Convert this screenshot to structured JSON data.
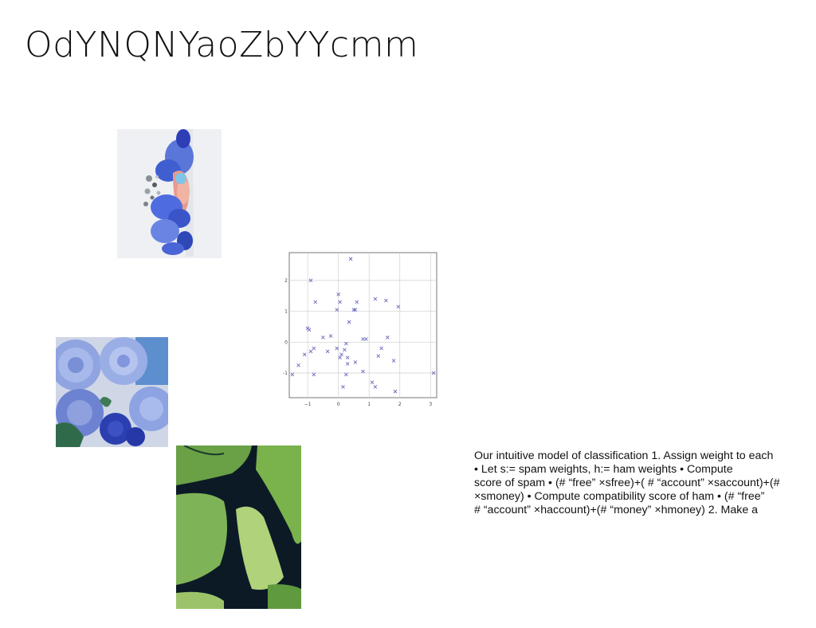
{
  "slide": {
    "title": "OdYNQNYaoZbYYcmm",
    "body_lines": [
      "Our intuitive model of classification 1. Assign weight to each",
      "• Let s:= spam weights, h:= ham weights • Compute",
      "score of spam • (# “free” ×sfree)+( # “account” ×saccount)+(#",
      "×smoney) • Compute compatibility score of ham • (# “free”",
      "# “account” ×haccount)+(# “money” ×hmoney) 2. Make a"
    ]
  },
  "images": {
    "orchid": "blue-orchid-photo",
    "dahlia": "blue-dahlia-photo",
    "wing": "butterfly-wing-photo"
  },
  "chart_data": {
    "type": "scatter",
    "marker": "x",
    "marker_color": "#6b6bbd",
    "grid": true,
    "xlim": [
      -1.6,
      3.2
    ],
    "ylim": [
      -1.8,
      2.9
    ],
    "xticks": [
      "−1",
      "0",
      "1",
      "2",
      "3"
    ],
    "yticks": [
      "2",
      "1",
      "0",
      "−1"
    ],
    "xtick_values": [
      -1,
      0,
      1,
      2,
      3
    ],
    "ytick_values": [
      2,
      1,
      0,
      -1
    ],
    "points": [
      [
        0.4,
        2.7
      ],
      [
        -0.9,
        2.0
      ],
      [
        0.0,
        1.55
      ],
      [
        0.05,
        1.3
      ],
      [
        -0.75,
        1.3
      ],
      [
        0.6,
        1.3
      ],
      [
        1.2,
        1.4
      ],
      [
        1.55,
        1.35
      ],
      [
        -0.05,
        1.05
      ],
      [
        0.5,
        1.05
      ],
      [
        0.55,
        1.05
      ],
      [
        1.95,
        1.15
      ],
      [
        0.35,
        0.65
      ],
      [
        -1.0,
        0.45
      ],
      [
        -0.95,
        0.4
      ],
      [
        -0.5,
        0.15
      ],
      [
        -0.25,
        0.2
      ],
      [
        0.8,
        0.1
      ],
      [
        0.9,
        0.1
      ],
      [
        1.6,
        0.15
      ],
      [
        0.25,
        -0.05
      ],
      [
        -0.8,
        -0.2
      ],
      [
        -0.9,
        -0.3
      ],
      [
        -0.05,
        -0.2
      ],
      [
        -0.35,
        -0.3
      ],
      [
        0.2,
        -0.25
      ],
      [
        1.4,
        -0.2
      ],
      [
        -1.1,
        -0.4
      ],
      [
        0.1,
        -0.4
      ],
      [
        0.05,
        -0.5
      ],
      [
        0.3,
        -0.5
      ],
      [
        1.3,
        -0.45
      ],
      [
        0.55,
        -0.65
      ],
      [
        0.3,
        -0.7
      ],
      [
        -1.3,
        -0.75
      ],
      [
        1.8,
        -0.6
      ],
      [
        0.8,
        -0.95
      ],
      [
        -1.5,
        -1.05
      ],
      [
        -0.8,
        -1.05
      ],
      [
        0.25,
        -1.05
      ],
      [
        3.1,
        -1.0
      ],
      [
        1.1,
        -1.3
      ],
      [
        1.2,
        -1.45
      ],
      [
        0.15,
        -1.45
      ],
      [
        1.85,
        -1.6
      ]
    ]
  }
}
